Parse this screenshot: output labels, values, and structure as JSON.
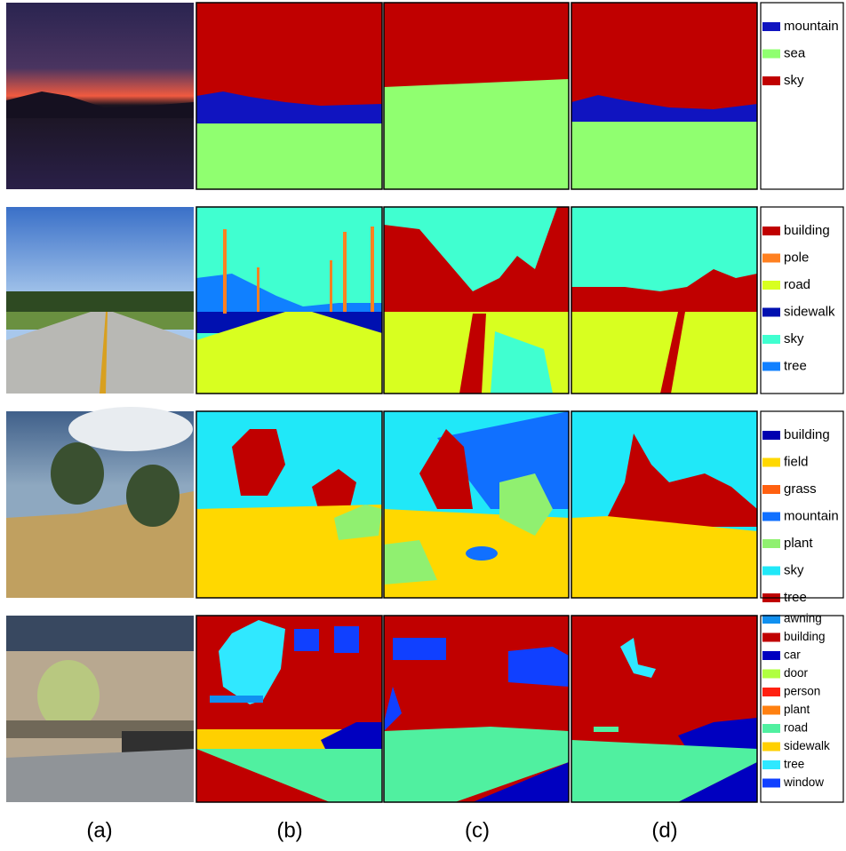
{
  "rows": [
    {
      "legend": [
        {
          "label": "mountain",
          "color": "#1014c0"
        },
        {
          "label": "sea",
          "color": "#90ff70"
        },
        {
          "label": "sky",
          "color": "#c00000"
        }
      ]
    },
    {
      "legend": [
        {
          "label": "building",
          "color": "#c00000"
        },
        {
          "label": "pole",
          "color": "#ff8020"
        },
        {
          "label": "road",
          "color": "#d8ff20"
        },
        {
          "label": "sidewalk",
          "color": "#0010b0"
        },
        {
          "label": "sky",
          "color": "#40ffd0"
        },
        {
          "label": "tree",
          "color": "#1080ff"
        }
      ]
    },
    {
      "legend": [
        {
          "label": "building",
          "color": "#0000b0"
        },
        {
          "label": "field",
          "color": "#ffd800"
        },
        {
          "label": "grass",
          "color": "#ff6010"
        },
        {
          "label": "mountain",
          "color": "#1070ff"
        },
        {
          "label": "plant",
          "color": "#90f070"
        },
        {
          "label": "sky",
          "color": "#20e8f8"
        },
        {
          "label": "tree",
          "color": "#c00000"
        }
      ]
    },
    {
      "legend": [
        {
          "label": "awning",
          "color": "#1090f0"
        },
        {
          "label": "building",
          "color": "#c00000"
        },
        {
          "label": "car",
          "color": "#0000c0"
        },
        {
          "label": "door",
          "color": "#b0ff40"
        },
        {
          "label": "person",
          "color": "#ff2010"
        },
        {
          "label": "plant",
          "color": "#ff8010"
        },
        {
          "label": "road",
          "color": "#50f0a0"
        },
        {
          "label": "sidewalk",
          "color": "#ffd000"
        },
        {
          "label": "tree",
          "color": "#30e8ff"
        },
        {
          "label": "window",
          "color": "#1040ff"
        }
      ]
    }
  ],
  "column_labels": [
    "(a)",
    "(b)",
    "(c)",
    "(d)"
  ]
}
